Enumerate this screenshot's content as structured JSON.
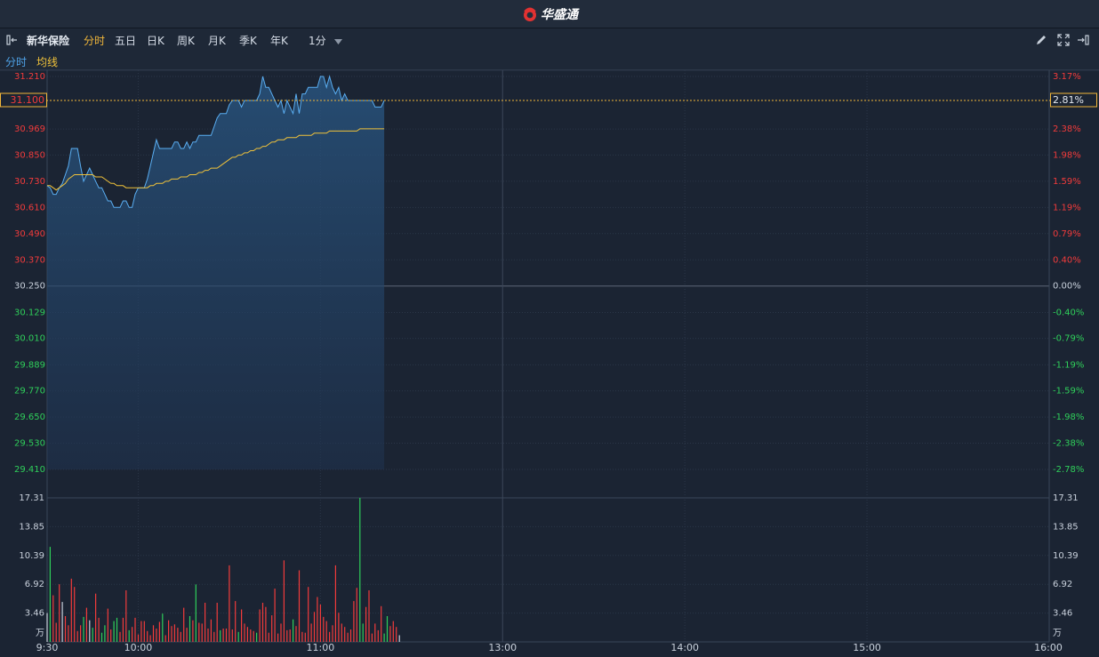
{
  "header": {
    "brand": "华盛通"
  },
  "toolbar": {
    "stock_name": "新华保险",
    "tabs": [
      {
        "label": "分时",
        "active": true
      },
      {
        "label": "五日",
        "active": false
      },
      {
        "label": "日K",
        "active": false
      },
      {
        "label": "周K",
        "active": false
      },
      {
        "label": "月K",
        "active": false
      },
      {
        "label": "季K",
        "active": false
      },
      {
        "label": "年K",
        "active": false
      }
    ],
    "interval": "1分",
    "icons": [
      "collapse-left-icon",
      "edit-icon",
      "fullscreen-icon",
      "collapse-right-icon"
    ]
  },
  "legend": {
    "price_label": "分时",
    "avg_label": "均线"
  },
  "colors": {
    "background": "#1b2433",
    "grid": "#2b3648",
    "price_line": "#5aaef2",
    "avg_line": "#f0c23a",
    "up": "#f23b3b",
    "down": "#2fcf5a",
    "neutral": "#c9d1dc",
    "accent": "#f0b63a"
  },
  "chart_data": {
    "type": "line",
    "prev_close": 30.25,
    "current_price": "31.100",
    "current_pct": "2.81%",
    "ylim": [
      29.41,
      31.21
    ],
    "price_ticks": [
      "31.210",
      "31.100",
      "30.969",
      "30.850",
      "30.730",
      "30.610",
      "30.490",
      "30.370",
      "30.250",
      "30.129",
      "30.010",
      "29.889",
      "29.770",
      "29.650",
      "29.530",
      "29.410"
    ],
    "price_tick_values": [
      31.21,
      31.1,
      30.969,
      30.85,
      30.73,
      30.61,
      30.49,
      30.37,
      30.25,
      30.129,
      30.01,
      29.889,
      29.77,
      29.65,
      29.53,
      29.41
    ],
    "pct_ticks": [
      "3.17%",
      "2.81%",
      "2.38%",
      "1.98%",
      "1.59%",
      "1.19%",
      "0.79%",
      "0.40%",
      "0.00%",
      "-0.40%",
      "-0.79%",
      "-1.19%",
      "-1.59%",
      "-1.98%",
      "-2.38%",
      "-2.78%"
    ],
    "x_ticks": [
      "9:30",
      "10:00",
      "11:00",
      "13:00",
      "14:00",
      "15:00",
      "16:00"
    ],
    "x_tick_minutes": [
      0,
      30,
      90,
      150,
      210,
      270,
      330
    ],
    "x_total_minutes": 330,
    "price": [
      30.71,
      30.7,
      30.67,
      30.67,
      30.7,
      30.72,
      30.76,
      30.8,
      30.88,
      30.88,
      30.88,
      30.8,
      30.73,
      30.76,
      30.79,
      30.76,
      30.73,
      30.7,
      30.7,
      30.67,
      30.64,
      30.64,
      30.61,
      30.61,
      30.61,
      30.64,
      30.64,
      30.61,
      30.61,
      30.67,
      30.7,
      30.7,
      30.7,
      30.74,
      30.8,
      30.86,
      30.92,
      30.88,
      30.88,
      30.88,
      30.88,
      30.88,
      30.91,
      30.91,
      30.88,
      30.88,
      30.91,
      30.88,
      30.91,
      30.91,
      30.94,
      30.94,
      30.94,
      30.94,
      30.94,
      30.98,
      31.02,
      31.04,
      31.04,
      31.04,
      31.08,
      31.1,
      31.1,
      31.1,
      31.07,
      31.1,
      31.1,
      31.1,
      31.1,
      31.1,
      31.13,
      31.21,
      31.16,
      31.16,
      31.13,
      31.1,
      31.07,
      31.1,
      31.04,
      31.1,
      31.07,
      31.04,
      31.13,
      31.04,
      31.13,
      31.13,
      31.16,
      31.16,
      31.16,
      31.16,
      31.21,
      31.21,
      31.16,
      31.21,
      31.16,
      31.13,
      31.16,
      31.1,
      31.13,
      31.1,
      31.1,
      31.1,
      31.1,
      31.1,
      31.1,
      31.1,
      31.1,
      31.1,
      31.07,
      31.07,
      31.07,
      31.1
    ],
    "avg": [
      30.71,
      30.71,
      30.7,
      30.69,
      30.7,
      30.71,
      30.72,
      30.74,
      30.75,
      30.76,
      30.76,
      30.76,
      30.76,
      30.76,
      30.76,
      30.76,
      30.75,
      30.75,
      30.75,
      30.74,
      30.73,
      30.72,
      30.72,
      30.71,
      30.71,
      30.71,
      30.7,
      30.7,
      30.7,
      30.7,
      30.7,
      30.7,
      30.7,
      30.7,
      30.71,
      30.71,
      30.72,
      30.72,
      30.72,
      30.73,
      30.73,
      30.74,
      30.74,
      30.74,
      30.75,
      30.75,
      30.75,
      30.76,
      30.76,
      30.76,
      30.77,
      30.77,
      30.78,
      30.78,
      30.79,
      30.79,
      30.79,
      30.8,
      30.81,
      30.82,
      30.83,
      30.84,
      30.84,
      30.85,
      30.85,
      30.86,
      30.86,
      30.87,
      30.87,
      30.88,
      30.88,
      30.89,
      30.89,
      30.9,
      30.91,
      30.91,
      30.92,
      30.92,
      30.92,
      30.93,
      30.93,
      30.93,
      30.93,
      30.94,
      30.94,
      30.94,
      30.94,
      30.94,
      30.95,
      30.95,
      30.95,
      30.95,
      30.95,
      30.96,
      30.96,
      30.96,
      30.96,
      30.96,
      30.96,
      30.96,
      30.96,
      30.96,
      30.96,
      30.97,
      30.97,
      30.97,
      30.97,
      30.97,
      30.97,
      30.97,
      30.97,
      30.97
    ],
    "volume_ticks": [
      "17.31",
      "13.85",
      "10.39",
      "6.92",
      "3.46",
      "万"
    ],
    "volume_tick_values": [
      17.31,
      13.85,
      10.39,
      6.92,
      3.46,
      0
    ],
    "volume_unit": "万",
    "volume": [
      3.46,
      11.42,
      5.6,
      2.3,
      6.92,
      4.8,
      3.1,
      2.0,
      7.6,
      6.6,
      1.3,
      2.0,
      3.0,
      4.1,
      2.6,
      1.7,
      5.8,
      2.9,
      1.1,
      2.0,
      4.0,
      1.5,
      2.5,
      2.9,
      1.2,
      2.9,
      6.2,
      1.4,
      1.8,
      2.9,
      0.9,
      2.5,
      2.5,
      1.3,
      0.8,
      2.0,
      1.6,
      2.4,
      3.4,
      0.8,
      2.6,
      1.9,
      2.1,
      1.7,
      1.2,
      4.1,
      1.7,
      3.1,
      2.6,
      6.9,
      2.3,
      2.2,
      4.7,
      1.6,
      2.7,
      1.2,
      4.7,
      1.4,
      1.6,
      1.6,
      9.2,
      1.5,
      4.9,
      1.2,
      3.9,
      2.2,
      1.8,
      1.5,
      1.3,
      1.1,
      3.9,
      4.7,
      4.2,
      1.1,
      3.2,
      6.4,
      1.0,
      2.2,
      9.8,
      1.4,
      1.5,
      2.7,
      1.9,
      8.6,
      1.2,
      1.1,
      6.6,
      2.2,
      3.6,
      5.4,
      4.5,
      3.0,
      2.5,
      1.2,
      2.0,
      9.2,
      3.5,
      2.2,
      1.8,
      1.1,
      1.5,
      4.9,
      6.5,
      17.31,
      2.2,
      4.2,
      6.2,
      1.0,
      2.2,
      1.4,
      4.3,
      1.0,
      3.1,
      1.9,
      2.5,
      1.8,
      0.8
    ],
    "volume_dir": [
      0,
      -1,
      1,
      1,
      1,
      0,
      1,
      1,
      1,
      1,
      1,
      1,
      -1,
      1,
      0,
      -1,
      1,
      1,
      -1,
      -1,
      1,
      1,
      -1,
      -1,
      1,
      1,
      1,
      -1,
      1,
      1,
      1,
      1,
      1,
      1,
      1,
      1,
      1,
      1,
      -1,
      1,
      1,
      1,
      1,
      1,
      1,
      1,
      1,
      -1,
      1,
      -1,
      1,
      1,
      1,
      1,
      1,
      1,
      1,
      -1,
      1,
      1,
      1,
      1,
      1,
      -1,
      1,
      1,
      1,
      1,
      1,
      -1,
      1,
      1,
      1,
      1,
      1,
      1,
      1,
      1,
      1,
      1,
      1,
      -1,
      1,
      1,
      1,
      1,
      1,
      1,
      1,
      1,
      1,
      1,
      1,
      1,
      1,
      1,
      1,
      1,
      1,
      1,
      1,
      1,
      1,
      -1,
      -1,
      1,
      1,
      1,
      1,
      1,
      1,
      -1,
      -1,
      1,
      1,
      1
    ]
  }
}
